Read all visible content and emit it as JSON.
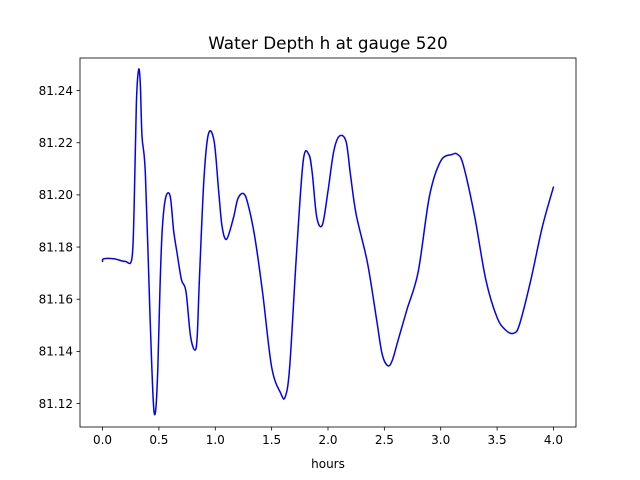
{
  "chart_data": {
    "type": "line",
    "title": "Water Depth h at gauge 520",
    "xlabel": "hours",
    "ylabel": "",
    "xlim": [
      -0.2,
      4.2
    ],
    "ylim": [
      81.111,
      81.2525
    ],
    "grid": false,
    "xticks": [
      0.0,
      0.5,
      1.0,
      1.5,
      2.0,
      2.5,
      3.0,
      3.5,
      4.0
    ],
    "xtick_labels": [
      "0.0",
      "0.5",
      "1.0",
      "1.5",
      "2.0",
      "2.5",
      "3.0",
      "3.5",
      "4.0"
    ],
    "yticks": [
      81.12,
      81.14,
      81.16,
      81.18,
      81.2,
      81.22,
      81.24
    ],
    "ytick_labels": [
      "81.12",
      "81.14",
      "81.16",
      "81.18",
      "81.20",
      "81.22",
      "81.24"
    ],
    "series": [
      {
        "color": "#0000ff",
        "x": [
          0.0,
          0.01,
          0.1,
          0.2,
          0.26,
          0.28,
          0.3,
          0.32,
          0.335,
          0.35,
          0.38,
          0.42,
          0.45,
          0.47,
          0.49,
          0.51,
          0.53,
          0.56,
          0.6,
          0.63,
          0.66,
          0.7,
          0.74,
          0.78,
          0.82,
          0.84,
          0.86,
          0.9,
          0.94,
          0.99,
          1.03,
          1.06,
          1.1,
          1.16,
          1.2,
          1.25,
          1.29,
          1.35,
          1.42,
          1.5,
          1.58,
          1.62,
          1.66,
          1.72,
          1.78,
          1.83,
          1.86,
          1.9,
          1.95,
          2.0,
          2.05,
          2.1,
          2.16,
          2.2,
          2.25,
          2.35,
          2.43,
          2.48,
          2.53,
          2.57,
          2.62,
          2.7,
          2.8,
          2.9,
          3.0,
          3.1,
          3.15,
          3.2,
          3.3,
          3.4,
          3.5,
          3.58,
          3.65,
          3.7,
          3.8,
          3.9,
          4.0
        ],
        "y": [
          81.1745,
          81.1755,
          81.1755,
          81.1745,
          81.1755,
          81.195,
          81.235,
          81.248,
          81.2425,
          81.2225,
          81.208,
          81.155,
          81.121,
          81.117,
          81.133,
          81.165,
          81.187,
          81.199,
          81.1995,
          81.1865,
          81.178,
          81.1675,
          81.163,
          81.146,
          81.1405,
          81.146,
          81.1685,
          81.2065,
          81.2235,
          81.2205,
          81.2015,
          81.188,
          81.183,
          81.191,
          81.1985,
          81.2005,
          81.1965,
          81.184,
          81.1625,
          81.134,
          81.124,
          81.1225,
          81.134,
          81.177,
          81.213,
          81.2155,
          81.2085,
          81.1915,
          81.1885,
          81.2015,
          81.2165,
          81.2225,
          81.2205,
          81.2075,
          81.1925,
          81.174,
          81.1525,
          81.139,
          81.1345,
          81.1365,
          81.144,
          81.156,
          81.1705,
          81.1995,
          81.213,
          81.2155,
          81.2155,
          81.2115,
          81.192,
          81.1675,
          81.153,
          81.148,
          81.147,
          81.1505,
          81.1675,
          81.1875,
          81.203
        ]
      }
    ]
  }
}
